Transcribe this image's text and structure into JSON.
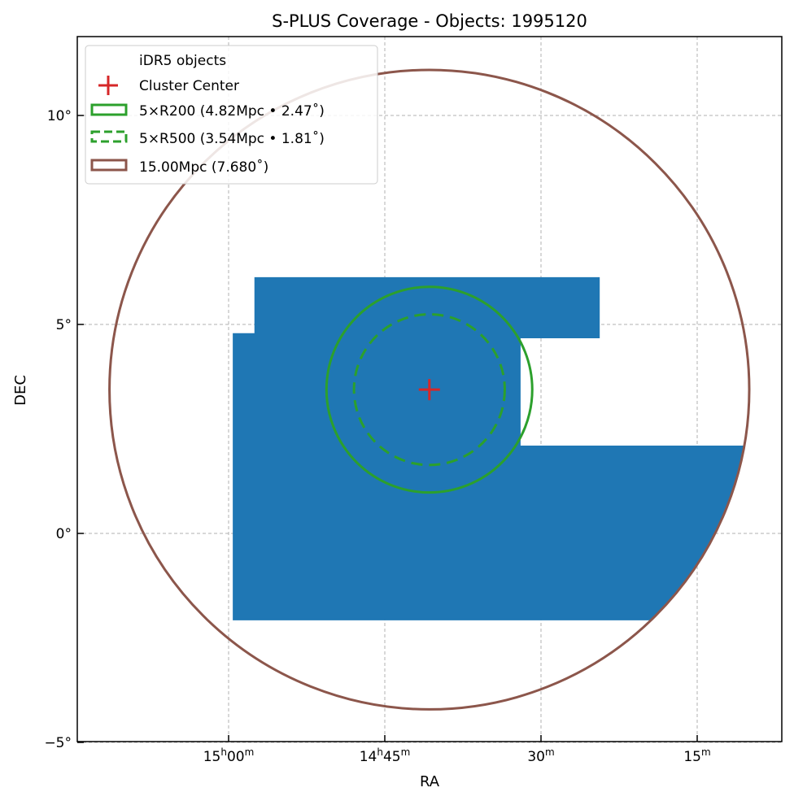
{
  "chart_data": {
    "type": "scatter",
    "title": "S-PLUS Coverage - Objects: 1995120",
    "xlabel": "RA",
    "ylabel": "DEC",
    "xlim_deg": [
      228.61,
      211.7
    ],
    "ylim_deg": [
      -5,
      11.86
    ],
    "grid": true,
    "legend_position": "top-left",
    "x_ticks": [
      {
        "value": 225.0,
        "h": "15",
        "m": "00",
        "show_h": true
      },
      {
        "value": 221.25,
        "h": "14",
        "m": "45",
        "show_h": true
      },
      {
        "value": 217.5,
        "h": "",
        "m": "30",
        "show_h": false
      },
      {
        "value": 213.75,
        "h": "",
        "m": "15",
        "show_h": false
      }
    ],
    "y_ticks": [
      {
        "value": 10,
        "label": "10°"
      },
      {
        "value": 5,
        "label": "5°"
      },
      {
        "value": 0,
        "label": "0°"
      },
      {
        "value": -5,
        "label": "−5°"
      }
    ],
    "coverage": {
      "name": "iDR5 objects",
      "count": 1995120,
      "color": "#1f77b4",
      "footprint_ra_dec": [
        [
          224.38,
          6.13
        ],
        [
          216.09,
          6.13
        ],
        [
          216.09,
          4.67
        ],
        [
          217.99,
          4.67
        ],
        [
          217.99,
          2.1
        ],
        [
          212.4,
          2.1
        ],
        [
          212.4,
          -2.08
        ],
        [
          224.9,
          -2.08
        ],
        [
          224.9,
          4.79
        ],
        [
          224.38,
          4.79
        ]
      ]
    },
    "center": {
      "name": "Cluster Center",
      "ra": 220.18,
      "dec": 3.44,
      "color": "#d62728"
    },
    "circles": [
      {
        "name": "5×R200 (4.82Mpc • 2.47$^\\circ$)",
        "label": "5×R200 (4.82Mpc • 2.47˚)",
        "radius_deg": 2.47,
        "radius_mpc": 4.82,
        "color": "#2ca02c",
        "dashed": false
      },
      {
        "name": "5×R500",
        "label": "5×R500 (3.54Mpc • 1.81˚)",
        "radius_deg": 1.81,
        "radius_mpc": 3.54,
        "color": "#2ca02c",
        "dashed": true
      },
      {
        "name": "15Mpc",
        "label": "15.00Mpc (7.680˚)",
        "radius_deg": 7.68,
        "radius_mpc": 15.0,
        "color": "#8c564b",
        "dashed": false
      }
    ]
  }
}
